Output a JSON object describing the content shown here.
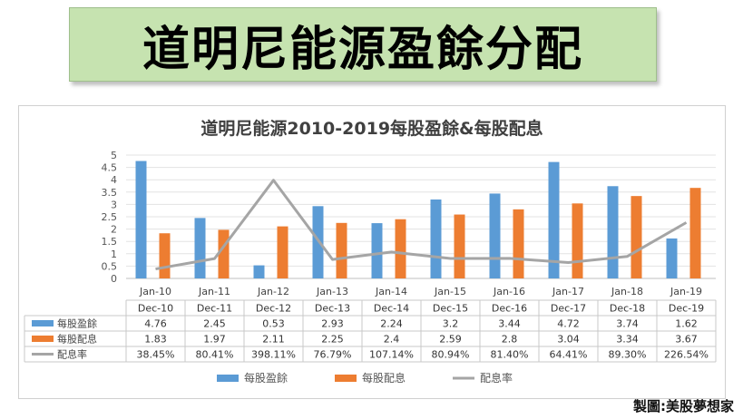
{
  "banner": {
    "title": "道明尼能源盈餘分配"
  },
  "credit": "製圖:美股夢想家",
  "colors": {
    "eps": "#5b9bd5",
    "dividend": "#ed7d31",
    "payout": "#a5a5a5"
  },
  "chart_data": {
    "type": "bar",
    "title": "道明尼能源2010-2019每股盈餘&每股配息",
    "categories": [
      "Jan-10",
      "Jan-11",
      "Jan-12",
      "Jan-13",
      "Jan-14",
      "Jan-15",
      "Jan-16",
      "Jan-17",
      "Jan-18",
      "Jan-19"
    ],
    "table_header": [
      "Dec-10",
      "Dec-11",
      "Dec-12",
      "Dec-13",
      "Dec-14",
      "Dec-15",
      "Dec-16",
      "Dec-17",
      "Dec-18",
      "Dec-19"
    ],
    "ylim": [
      0,
      5
    ],
    "yticks": [
      "0",
      "0.5",
      "1",
      "1.5",
      "2",
      "2.5",
      "3",
      "3.5",
      "4",
      "4.5",
      "5"
    ],
    "grid": true,
    "legend_position": "bottom",
    "series": [
      {
        "name": "每股盈餘",
        "type": "bar",
        "values": [
          4.76,
          2.45,
          0.53,
          2.93,
          2.24,
          3.2,
          3.44,
          4.72,
          3.74,
          1.62
        ],
        "labels": [
          "4.76",
          "2.45",
          "0.53",
          "2.93",
          "2.24",
          "3.2",
          "3.44",
          "4.72",
          "3.74",
          "1.62"
        ]
      },
      {
        "name": "每股配息",
        "type": "bar",
        "values": [
          1.83,
          1.97,
          2.11,
          2.25,
          2.4,
          2.59,
          2.8,
          3.04,
          3.34,
          3.67
        ],
        "labels": [
          "1.83",
          "1.97",
          "2.11",
          "2.25",
          "2.4",
          "2.59",
          "2.8",
          "3.04",
          "3.34",
          "3.67"
        ]
      },
      {
        "name": "配息率",
        "type": "line",
        "values": [
          0.3845,
          0.8041,
          3.9811,
          0.7679,
          1.0714,
          0.8094,
          0.814,
          0.6441,
          0.893,
          2.2654
        ],
        "labels": [
          "38.45%",
          "80.41%",
          "398.11%",
          "76.79%",
          "107.14%",
          "80.94%",
          "81.40%",
          "64.41%",
          "89.30%",
          "226.54%"
        ]
      }
    ]
  }
}
